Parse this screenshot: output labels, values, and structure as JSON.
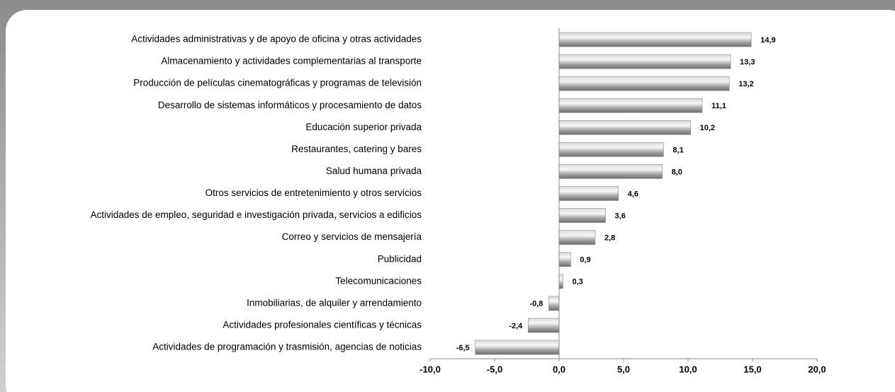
{
  "chart_data": {
    "type": "bar",
    "orientation": "horizontal",
    "categories": [
      "Actividades administrativas y de apoyo de oficina y otras actividades",
      "Almacenamiento y actividades complementarias al transporte",
      "Producción de películas cinematográficas y programas de televisión",
      "Desarrollo de sistemas informáticos y procesamiento de datos",
      "Educación superior privada",
      "Restaurantes, catering y bares",
      "Salud humana privada",
      "Otros servicios de entretenimiento y otros servicios",
      "Actividades de empleo, seguridad e investigación privada, servicios a edificios",
      "Correo y servicios de mensajería",
      "Publicidad",
      "Telecomunicaciones",
      "Inmobiliarias, de alquiler y arrendamiento",
      "Actividades profesionales científicas y técnicas",
      "Actividades de programación y trasmisión, agencias de noticias"
    ],
    "values": [
      14.9,
      13.3,
      13.2,
      11.1,
      10.2,
      8.1,
      8.0,
      4.6,
      3.6,
      2.8,
      0.9,
      0.3,
      -0.8,
      -2.4,
      -6.5
    ],
    "value_labels": [
      "14,9",
      "13,3",
      "13,2",
      "11,1",
      "10,2",
      "8,1",
      "8,0",
      "4,6",
      "3,6",
      "2,8",
      "0,9",
      "0,3",
      "-0,8",
      "-2,4",
      "-6,5"
    ],
    "color": "#a6a6a6",
    "xlim": [
      -10,
      20
    ],
    "xticks": [
      {
        "value": -10,
        "label": "-10,0"
      },
      {
        "value": -5,
        "label": "-5,0"
      },
      {
        "value": 0,
        "label": "0,0"
      },
      {
        "value": 5,
        "label": "5,0"
      },
      {
        "value": 10,
        "label": "10,0"
      },
      {
        "value": 15,
        "label": "15,0"
      },
      {
        "value": 20,
        "label": "20,0"
      }
    ],
    "grid": false
  }
}
